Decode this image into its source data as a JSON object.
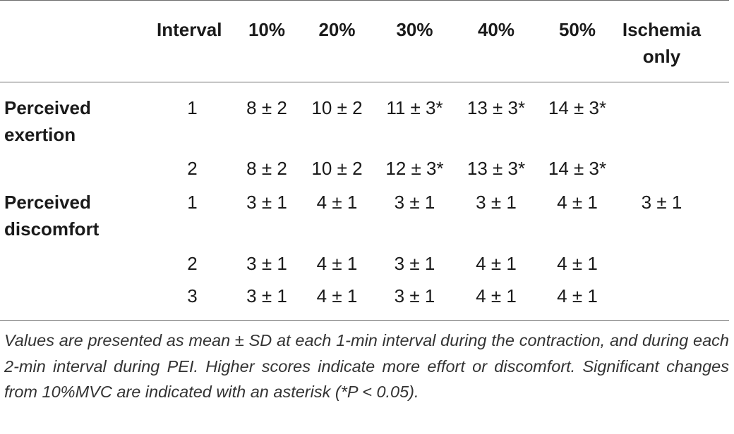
{
  "table": {
    "headers": [
      "",
      "Interval",
      "10%",
      "20%",
      "30%",
      "40%",
      "50%",
      "Ischemia only"
    ],
    "header_ischemia_line1": "Ischemia",
    "header_ischemia_line2": "only",
    "groups": [
      {
        "label_line1": "Perceived",
        "label_line2": "exertion",
        "rows": [
          {
            "interval": "1",
            "values": [
              "8 ± 2",
              "10 ± 2",
              "11 ± 3*",
              "13 ± 3*",
              "14 ± 3*",
              ""
            ]
          },
          {
            "interval": "2",
            "values": [
              "8 ± 2",
              "10 ± 2",
              "12 ± 3*",
              "13 ± 3*",
              "14 ± 3*",
              ""
            ]
          }
        ]
      },
      {
        "label_line1": "Perceived",
        "label_line2": "discomfort",
        "rows": [
          {
            "interval": "1",
            "values": [
              "3 ± 1",
              "4 ± 1",
              "3 ± 1",
              "3 ± 1",
              "4 ± 1",
              "3 ± 1"
            ]
          },
          {
            "interval": "2",
            "values": [
              "3 ± 1",
              "4 ± 1",
              "3 ± 1",
              "4 ± 1",
              "4 ± 1",
              ""
            ]
          },
          {
            "interval": "3",
            "values": [
              "3 ± 1",
              "4 ± 1",
              "3 ± 1",
              "4 ± 1",
              "4 ± 1",
              ""
            ]
          }
        ]
      }
    ]
  },
  "footnote": "Values are presented as mean ± SD at each 1-min interval during the contraction, and during each 2-min interval during PEI. Higher scores indicate more effort or discomfort. Significant changes from 10%MVC are indicated with an asterisk (*P < 0.05)."
}
